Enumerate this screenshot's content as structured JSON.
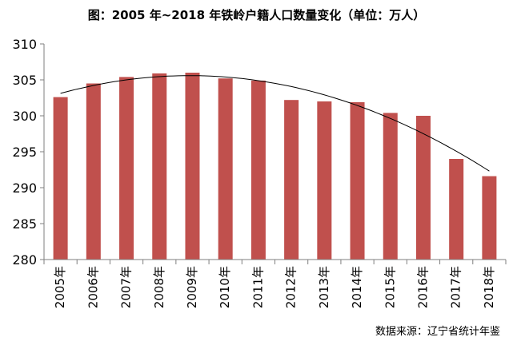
{
  "title": "图：2005 年~2018 年铁岭户籍人口数量变化（单位：万人）",
  "source": "数据来源：辽宁省统计年鉴",
  "colors": {
    "bar": "#c0504d",
    "axis": "#7f7f7f",
    "trend": "#000000"
  },
  "chart_data": {
    "type": "bar",
    "categories": [
      "2005年",
      "2006年",
      "2007年",
      "2008年",
      "2009年",
      "2010年",
      "2011年",
      "2012年",
      "2013年",
      "2014年",
      "2015年",
      "2016年",
      "2017年",
      "2018年"
    ],
    "values": [
      302.6,
      304.5,
      305.4,
      305.9,
      306.0,
      305.2,
      304.9,
      302.2,
      302.0,
      301.9,
      300.4,
      300.0,
      294.0,
      291.6
    ],
    "trendline": {
      "type": "polynomial",
      "order": 2
    },
    "ylim": [
      280,
      310
    ],
    "yticks": [
      280,
      285,
      290,
      295,
      300,
      305,
      310
    ],
    "grid": false,
    "xlabel": "",
    "ylabel": ""
  }
}
